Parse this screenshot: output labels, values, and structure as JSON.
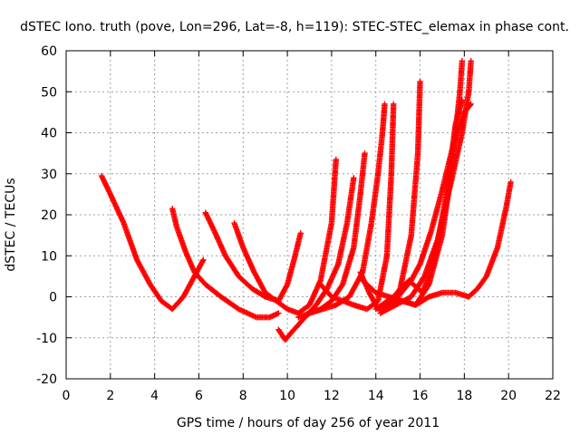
{
  "chart_data": {
    "type": "scatter",
    "title": "dSTEC Iono. truth (pove, Lon=296, Lat=-8, h=119): STEC-STEC_elemax in phase cont.",
    "xlabel": "GPS time / hours of day 256 of year 2011",
    "ylabel": "dSTEC  / TECUs",
    "xlim": [
      0,
      22
    ],
    "ylim": [
      -20,
      60
    ],
    "x_ticks": [
      "0",
      "2",
      "4",
      "6",
      "8",
      "10",
      "12",
      "14",
      "16",
      "18",
      "20",
      "22"
    ],
    "y_ticks": [
      "-20",
      "-10",
      "0",
      "10",
      "20",
      "30",
      "40",
      "50",
      "60"
    ],
    "grid": true,
    "marker": "+",
    "color": "#ff0000",
    "series": [
      {
        "points": [
          [
            1.6,
            29.5
          ],
          [
            2.0,
            25
          ],
          [
            2.6,
            18
          ],
          [
            3.2,
            9
          ],
          [
            3.8,
            3
          ],
          [
            4.3,
            -1
          ],
          [
            4.8,
            -3
          ],
          [
            5.3,
            0
          ],
          [
            5.8,
            5
          ],
          [
            6.2,
            9
          ]
        ]
      },
      {
        "points": [
          [
            4.8,
            21.5
          ],
          [
            5.0,
            17
          ],
          [
            5.4,
            11
          ],
          [
            5.8,
            6
          ],
          [
            6.3,
            3
          ],
          [
            7.0,
            0
          ],
          [
            7.8,
            -3
          ],
          [
            8.6,
            -5
          ],
          [
            9.2,
            -5
          ],
          [
            9.6,
            -4
          ]
        ]
      },
      {
        "points": [
          [
            6.3,
            20.5
          ],
          [
            6.7,
            16
          ],
          [
            7.2,
            10
          ],
          [
            7.8,
            5
          ],
          [
            8.4,
            2
          ],
          [
            9.0,
            0
          ],
          [
            9.6,
            -1
          ],
          [
            10.0,
            3
          ],
          [
            10.3,
            9
          ],
          [
            10.6,
            15.5
          ]
        ]
      },
      {
        "points": [
          [
            7.6,
            18
          ],
          [
            8.0,
            12
          ],
          [
            8.5,
            6
          ],
          [
            9.0,
            1
          ],
          [
            9.5,
            -1
          ],
          [
            10.0,
            -3
          ],
          [
            10.5,
            -4
          ],
          [
            11.0,
            -2
          ],
          [
            11.5,
            4
          ],
          [
            12.0,
            18
          ],
          [
            12.2,
            33.5
          ]
        ]
      },
      {
        "points": [
          [
            9.6,
            -8
          ],
          [
            9.9,
            -10.5
          ],
          [
            10.3,
            -8
          ],
          [
            10.8,
            -5
          ],
          [
            11.3,
            -2
          ],
          [
            11.8,
            2
          ],
          [
            12.3,
            8
          ],
          [
            12.7,
            18
          ],
          [
            13.0,
            29
          ]
        ]
      },
      {
        "points": [
          [
            10.5,
            -5
          ],
          [
            11.0,
            -4
          ],
          [
            11.5,
            -3
          ],
          [
            12.0,
            -1
          ],
          [
            12.5,
            3
          ],
          [
            13.0,
            12
          ],
          [
            13.3,
            25
          ],
          [
            13.5,
            35
          ]
        ]
      },
      {
        "points": [
          [
            11.0,
            -4
          ],
          [
            11.6,
            -3
          ],
          [
            12.2,
            -2
          ],
          [
            12.8,
            0
          ],
          [
            13.4,
            6
          ],
          [
            13.8,
            18
          ],
          [
            14.1,
            30
          ],
          [
            14.3,
            40
          ],
          [
            14.4,
            47
          ]
        ]
      },
      {
        "points": [
          [
            11.5,
            3
          ],
          [
            12.0,
            0
          ],
          [
            12.5,
            -1
          ],
          [
            13.0,
            -2
          ],
          [
            13.6,
            -3
          ],
          [
            14.1,
            -1
          ],
          [
            14.5,
            10
          ],
          [
            14.7,
            30
          ],
          [
            14.8,
            47
          ]
        ]
      },
      {
        "points": [
          [
            13.3,
            6
          ],
          [
            13.7,
            1
          ],
          [
            14.1,
            -3
          ],
          [
            14.6,
            -2
          ],
          [
            15.1,
            2
          ],
          [
            15.6,
            15
          ],
          [
            15.9,
            35
          ],
          [
            16.0,
            52.5
          ]
        ]
      },
      {
        "points": [
          [
            13.4,
            4
          ],
          [
            14.0,
            1
          ],
          [
            14.6,
            0
          ],
          [
            15.2,
            -1
          ],
          [
            15.8,
            -2
          ],
          [
            16.4,
            3
          ],
          [
            17.0,
            15
          ],
          [
            17.4,
            30
          ],
          [
            17.8,
            50
          ],
          [
            17.9,
            57.5
          ]
        ]
      },
      {
        "points": [
          [
            14.0,
            -3
          ],
          [
            14.8,
            0
          ],
          [
            15.5,
            4
          ],
          [
            16.1,
            1
          ],
          [
            16.6,
            8
          ],
          [
            17.2,
            25
          ],
          [
            17.6,
            42
          ],
          [
            17.9,
            48
          ]
        ]
      },
      {
        "points": [
          [
            14.2,
            -4
          ],
          [
            14.9,
            -2
          ],
          [
            15.6,
            0
          ],
          [
            16.2,
            5
          ],
          [
            16.8,
            14
          ],
          [
            17.4,
            28
          ],
          [
            17.9,
            40
          ],
          [
            18.2,
            50
          ],
          [
            18.3,
            57.5
          ]
        ]
      },
      {
        "points": [
          [
            14.5,
            -2
          ],
          [
            15.2,
            -1
          ],
          [
            15.8,
            -2
          ],
          [
            16.4,
            0
          ],
          [
            17.0,
            1
          ],
          [
            17.6,
            1
          ],
          [
            18.2,
            0
          ],
          [
            18.6,
            2
          ],
          [
            19.0,
            5
          ],
          [
            19.5,
            12
          ],
          [
            19.9,
            22
          ],
          [
            20.1,
            28
          ]
        ]
      },
      {
        "points": [
          [
            15.0,
            0
          ],
          [
            15.6,
            4
          ],
          [
            16.0,
            8
          ],
          [
            16.5,
            16
          ],
          [
            17.0,
            26
          ],
          [
            17.5,
            37
          ],
          [
            18.0,
            45
          ],
          [
            18.3,
            47
          ]
        ]
      }
    ]
  }
}
